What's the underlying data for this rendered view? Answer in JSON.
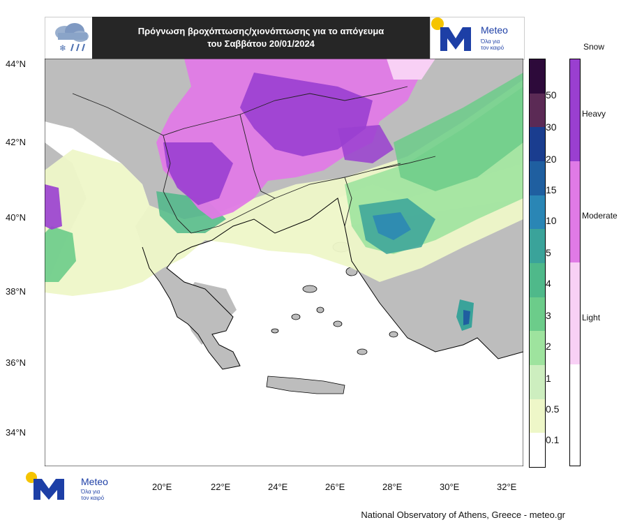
{
  "header": {
    "title_line1": "Πρόγνωση βροχόπτωσης/χιονόπτωσης για το απόγευμα",
    "title_line2": "του Σαββάτου 20/01/2024",
    "weather_icon": "rain-snow-cloud-icon"
  },
  "logo": {
    "brand": "Meteo",
    "tagline_line1": "Όλα για",
    "tagline_line2": "τον καιρό",
    "icon": "meteo-m-logo-icon"
  },
  "map": {
    "lat_labels": [
      "44°N",
      "42°N",
      "40°N",
      "38°N",
      "36°N",
      "34°N"
    ],
    "lon_labels": [
      "20°E",
      "22°E",
      "24°E",
      "26°E",
      "28°E",
      "30°E",
      "32°E"
    ],
    "land_color": "#bdbdbd",
    "sea_color": "#ffffff"
  },
  "precip_colorbar": {
    "labels": [
      "50",
      "30",
      "20",
      "15",
      "10",
      "5",
      "4",
      "3",
      "2",
      "1",
      "0.5",
      "0.1"
    ],
    "colors": [
      "#2d0a3a",
      "#5b2a55",
      "#1a3d8f",
      "#1f5fa0",
      "#2a86b5",
      "#3aa39a",
      "#4fb98a",
      "#6ccc8a",
      "#9ee39e",
      "#cdeebf",
      "#eef7c8",
      "#ffffff"
    ]
  },
  "snow_colorbar": {
    "title": "Snow",
    "labels": [
      "Heavy",
      "Moderate",
      "Light"
    ],
    "colors": [
      "#9a3fd0",
      "#e07ae6",
      "#f8d0f5",
      "#ffffff"
    ]
  },
  "footer": {
    "credit": "National Observatory of Athens, Greece - meteo.gr"
  }
}
